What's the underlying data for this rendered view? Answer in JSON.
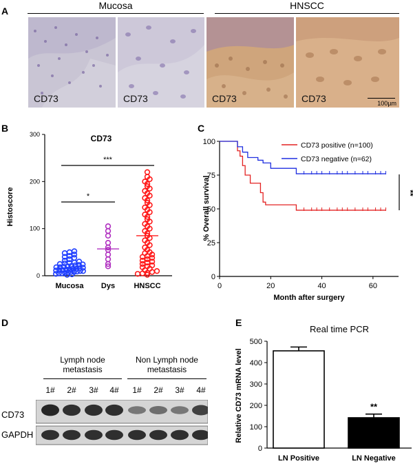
{
  "panels": {
    "a": "A",
    "b": "B",
    "c": "C",
    "d": "D",
    "e": "E"
  },
  "panel_a": {
    "group_mucosa": "Mucosa",
    "group_hnscc": "HNSCC",
    "image_labels": [
      "CD73",
      "CD73",
      "CD73",
      "CD73"
    ],
    "scale_bar": "100µm"
  },
  "panel_d": {
    "group1_line1": "Lymph node",
    "group1_line2": "metastasis",
    "group2_line1": "Non Lymph node",
    "group2_line2": "metastasis",
    "lanes": [
      "1#",
      "2#",
      "3#",
      "4#",
      "1#",
      "2#",
      "3#",
      "4#"
    ],
    "rows": [
      "CD73",
      "GAPDH"
    ],
    "cd73_intensity": [
      0.9,
      0.85,
      0.85,
      0.85,
      0.45,
      0.5,
      0.45,
      0.75
    ],
    "gapdh_intensity": [
      0.85,
      0.85,
      0.85,
      0.85,
      0.85,
      0.85,
      0.85,
      0.85
    ]
  },
  "chart_data": [
    {
      "type": "scatter",
      "title": "CD73",
      "ylabel": "Histoscore",
      "xlabel": "",
      "categories": [
        "Mucosa",
        "Dys",
        "HNSCC"
      ],
      "ylim": [
        0,
        300
      ],
      "yticks": [
        0,
        100,
        200,
        300
      ],
      "colors": [
        "#1f3fff",
        "#b030c0",
        "#ff1a1a"
      ],
      "medians": [
        15,
        57,
        85
      ],
      "series": [
        {
          "category": "Mucosa",
          "values": [
            2,
            3,
            4,
            5,
            5,
            6,
            7,
            8,
            8,
            9,
            10,
            10,
            11,
            12,
            12,
            13,
            14,
            15,
            15,
            16,
            17,
            18,
            18,
            19,
            20,
            21,
            22,
            23,
            24,
            25,
            26,
            27,
            28,
            30,
            32,
            35,
            38,
            40,
            42,
            45,
            48,
            50,
            52
          ]
        },
        {
          "category": "Dys",
          "values": [
            20,
            25,
            35,
            45,
            55,
            60,
            70,
            85,
            95,
            105
          ]
        },
        {
          "category": "HNSCC",
          "values": [
            2,
            4,
            5,
            6,
            8,
            10,
            12,
            15,
            18,
            20,
            22,
            25,
            28,
            30,
            32,
            35,
            38,
            40,
            42,
            45,
            48,
            50,
            55,
            60,
            65,
            70,
            75,
            80,
            85,
            90,
            95,
            100,
            105,
            110,
            115,
            120,
            125,
            130,
            135,
            140,
            145,
            150,
            155,
            160,
            165,
            170,
            175,
            180,
            185,
            190,
            195,
            200,
            205,
            210,
            220
          ]
        }
      ],
      "annotations": [
        {
          "from": "Mucosa",
          "to": "Dys",
          "label": "*"
        },
        {
          "from": "Mucosa",
          "to": "HNSCC",
          "label": "***"
        }
      ]
    },
    {
      "type": "line",
      "title": "",
      "xlabel": "Month after surgery",
      "ylabel": "% Overall survival",
      "xlim": [
        0,
        70
      ],
      "ylim": [
        0,
        100
      ],
      "xticks": [
        0,
        20,
        40,
        60
      ],
      "yticks": [
        0,
        25,
        50,
        75,
        100
      ],
      "legend_position": "top-right",
      "significance": "**",
      "series": [
        {
          "name": "CD73 positive (n=100)",
          "color": "#e32020",
          "x": [
            0,
            7,
            8,
            9,
            10,
            12,
            14,
            16,
            17,
            18,
            30,
            65
          ],
          "y": [
            100,
            93,
            89,
            82,
            75,
            69,
            69,
            62,
            55,
            53,
            49,
            49
          ],
          "censor_x": [
            33,
            36,
            38,
            40,
            43,
            46,
            48,
            50,
            53,
            56,
            58,
            61,
            63,
            65
          ]
        },
        {
          "name": "CD73 negative (n=62)",
          "color": "#1f2fe0",
          "x": [
            0,
            7,
            9,
            11,
            15,
            17,
            20,
            30,
            65
          ],
          "y": [
            100,
            96,
            92,
            88,
            86,
            84,
            80,
            76,
            76
          ],
          "censor_x": [
            33,
            36,
            38,
            40,
            43,
            46,
            48,
            50,
            53,
            56,
            58,
            61,
            63,
            65
          ]
        }
      ]
    },
    {
      "type": "bar",
      "title": "Real time PCR",
      "ylabel": "Relative CD73 mRNA level",
      "xlabel": "",
      "categories": [
        "LN Positive",
        "LN Negative"
      ],
      "values": [
        455,
        142
      ],
      "errors": [
        18,
        17
      ],
      "fills": [
        "#ffffff",
        "#000000"
      ],
      "ylim": [
        0,
        500
      ],
      "yticks": [
        0,
        100,
        200,
        300,
        400,
        500
      ],
      "significance": [
        {
          "bar": "LN Negative",
          "label": "**"
        }
      ]
    }
  ]
}
